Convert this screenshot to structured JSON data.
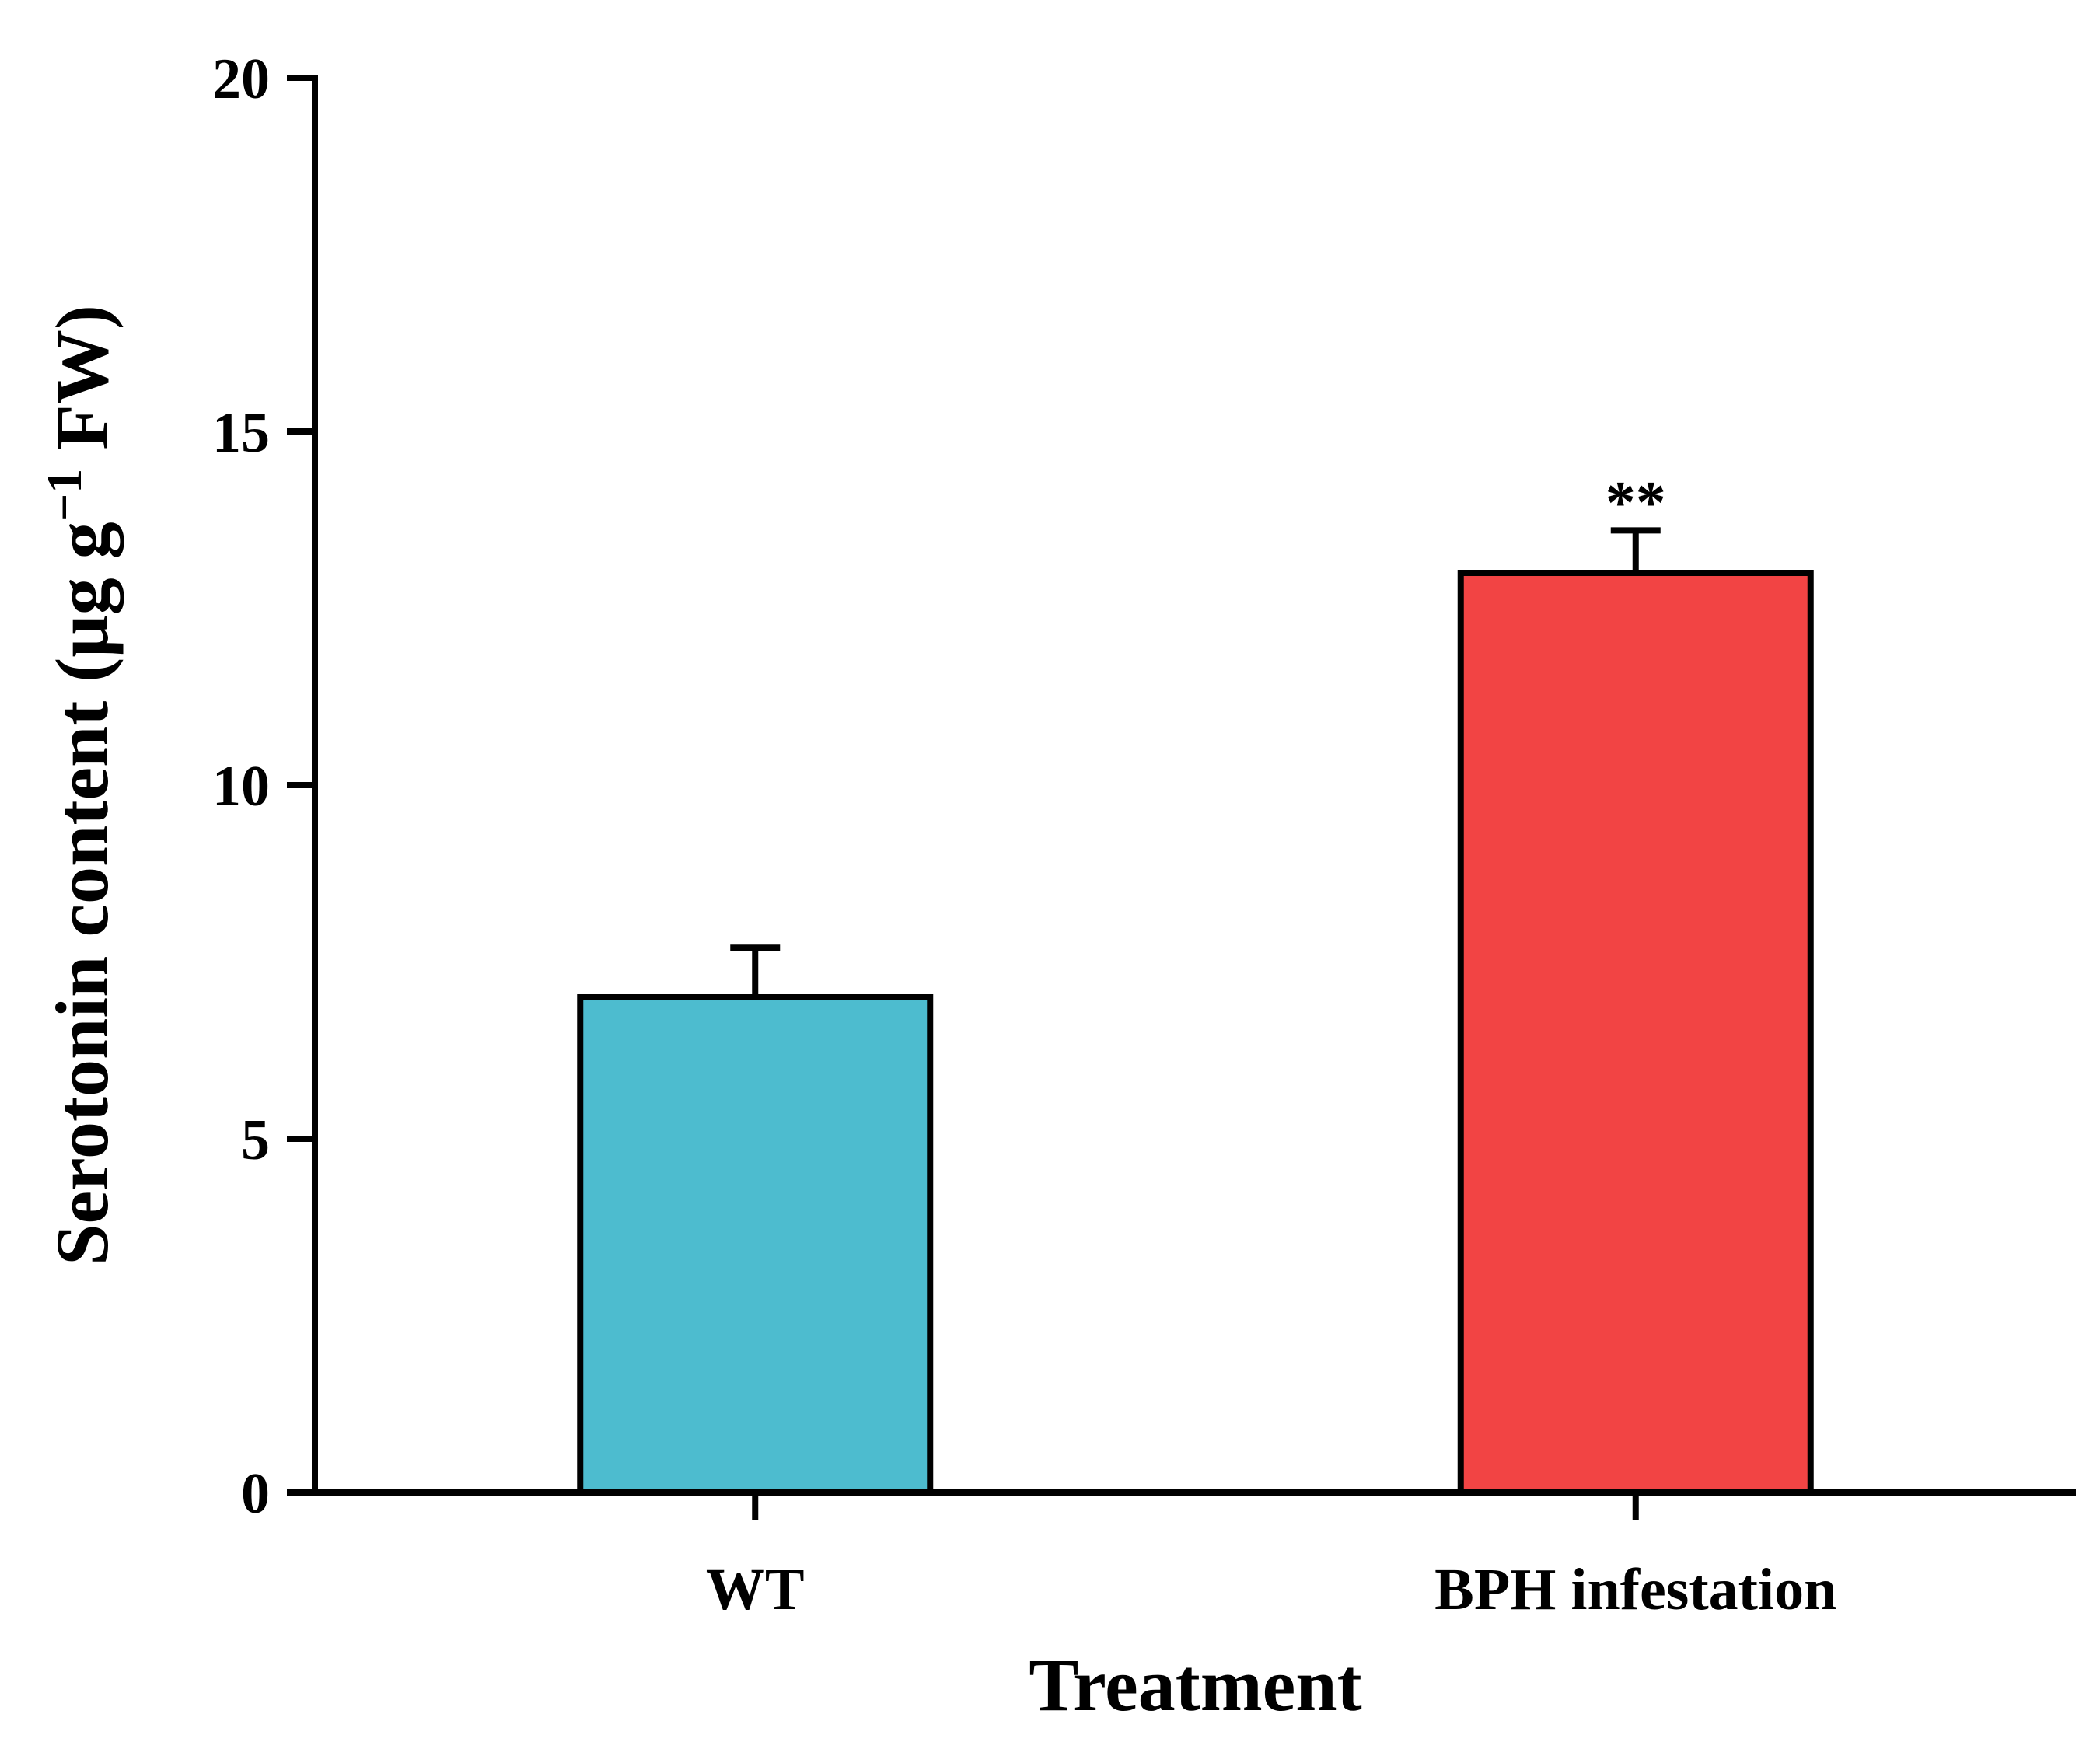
{
  "chart_data": {
    "type": "bar",
    "title": "",
    "categories": [
      "WT",
      "BPH infestation"
    ],
    "values": [
      7.0,
      13.0
    ],
    "errors": [
      0.7,
      0.6
    ],
    "colors": [
      "#4DBCCF",
      "#F24444"
    ],
    "significance": [
      "",
      "**"
    ],
    "xlabel": "Treatment",
    "ylabel": {
      "prefix": "Serotonin content (μg g",
      "superscript": "−1",
      "suffix": " FW)"
    },
    "ylim": [
      0,
      20
    ],
    "yticks": [
      0,
      5,
      10,
      15,
      20
    ],
    "grid": false,
    "legend": "none"
  }
}
